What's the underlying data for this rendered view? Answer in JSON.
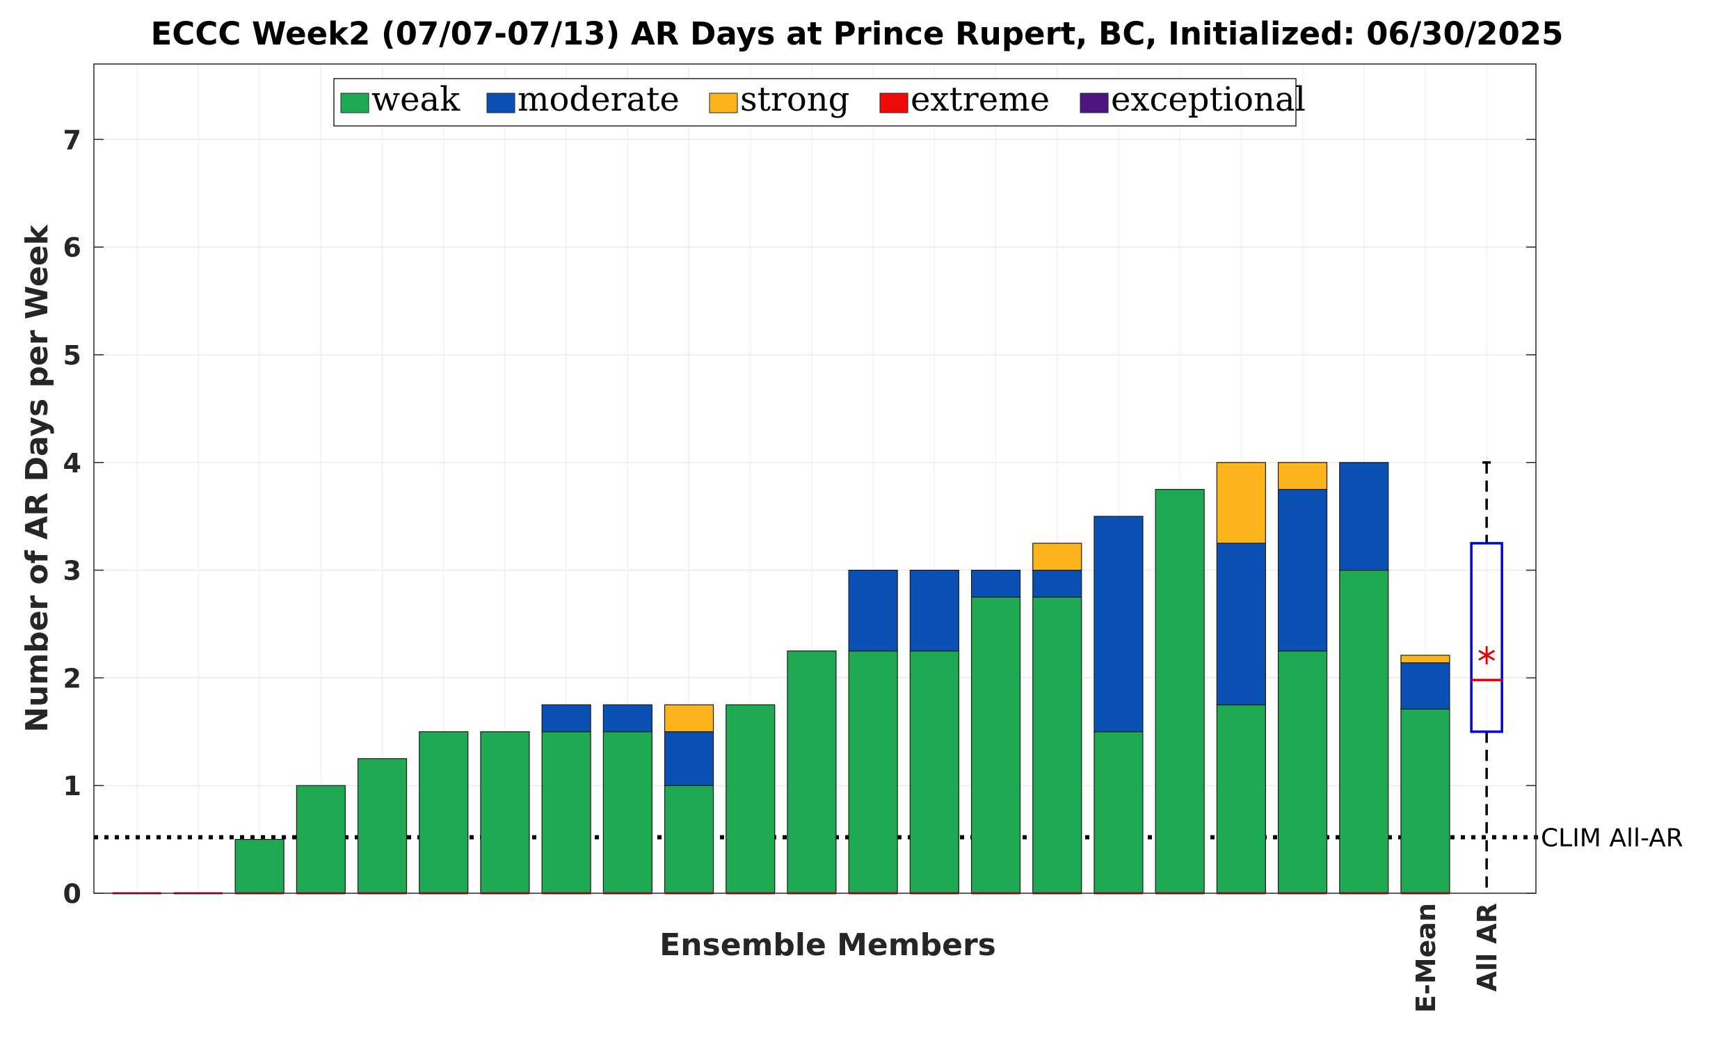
{
  "chart_data": {
    "type": "bar",
    "stacked": true,
    "title": "ECCC Week2 (07/07-07/13) AR Days at Prince Rupert, BC, Initialized: 06/30/2025",
    "xlabel": "Ensemble Members",
    "ylabel": "Number of AR Days per Week",
    "ylim": [
      0,
      7.7
    ],
    "yticks": [
      0,
      1,
      2,
      3,
      4,
      5,
      6,
      7
    ],
    "grid": true,
    "legend_position": "top-center",
    "series": [
      {
        "name": "weak",
        "color": "#1fa952",
        "values": [
          0,
          0,
          0.5,
          1,
          1.25,
          1.5,
          1.5,
          1.5,
          1.5,
          1,
          1.75,
          2.25,
          2.25,
          2.25,
          2.75,
          2.75,
          1.5,
          3.75,
          1.75,
          2.25,
          3,
          1.71
        ]
      },
      {
        "name": "moderate",
        "color": "#0b50b4",
        "values": [
          0,
          0,
          0,
          0,
          0,
          0,
          0,
          0.25,
          0.25,
          0.5,
          0,
          0,
          0.75,
          0.75,
          0.25,
          0.25,
          2,
          0,
          1.5,
          1.5,
          1,
          0.43
        ]
      },
      {
        "name": "strong",
        "color": "#fbb41b",
        "values": [
          0,
          0,
          0,
          0,
          0,
          0,
          0,
          0,
          0,
          0.25,
          0,
          0,
          0,
          0,
          0,
          0.25,
          0,
          0,
          0.75,
          0.25,
          0,
          0.07
        ]
      },
      {
        "name": "extreme",
        "color": "#f00a0a",
        "values": [
          0,
          0,
          0,
          0,
          0,
          0,
          0,
          0,
          0,
          0,
          0,
          0,
          0,
          0,
          0,
          0,
          0,
          0,
          0,
          0,
          0,
          0
        ]
      },
      {
        "name": "exceptional",
        "color": "#4d1680",
        "values": [
          0,
          0,
          0,
          0,
          0,
          0,
          0,
          0,
          0,
          0,
          0,
          0,
          0,
          0,
          0,
          0,
          0,
          0,
          0,
          0,
          0,
          0
        ]
      }
    ],
    "x_tick_labels": [
      "E-Mean",
      "All AR"
    ],
    "boxplot": {
      "label": "All AR",
      "whisker_low": 0,
      "q1": 1.5,
      "median": 1.98,
      "q3": 3.25,
      "whisker_high": 4,
      "mean": 2.21,
      "box_color": "#0000e6",
      "median_color": "#e60000"
    },
    "reference_line": {
      "label": "CLIM All-AR",
      "value": 0.52
    }
  }
}
